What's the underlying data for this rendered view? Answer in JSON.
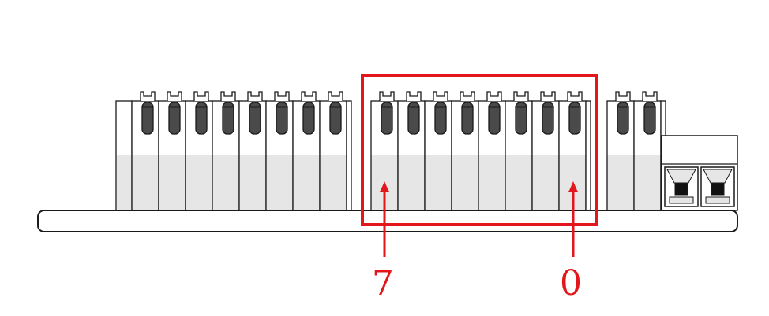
{
  "diagram": {
    "colors": {
      "outline": "#1a1a1a",
      "base_fill": "#ffffff",
      "module_top": "#ffffff",
      "module_bottom": "#e6e6e6",
      "slot_fill": "#4a4a4a",
      "connector_fill": "#ffffff",
      "highlight": "#e3161c",
      "label_color": "#e3161c"
    },
    "terminals": {
      "group_left_count": 8,
      "group_highlighted_count": 8,
      "group_right_count": 2
    },
    "callouts": {
      "label_left": "7",
      "label_right": "0"
    }
  }
}
